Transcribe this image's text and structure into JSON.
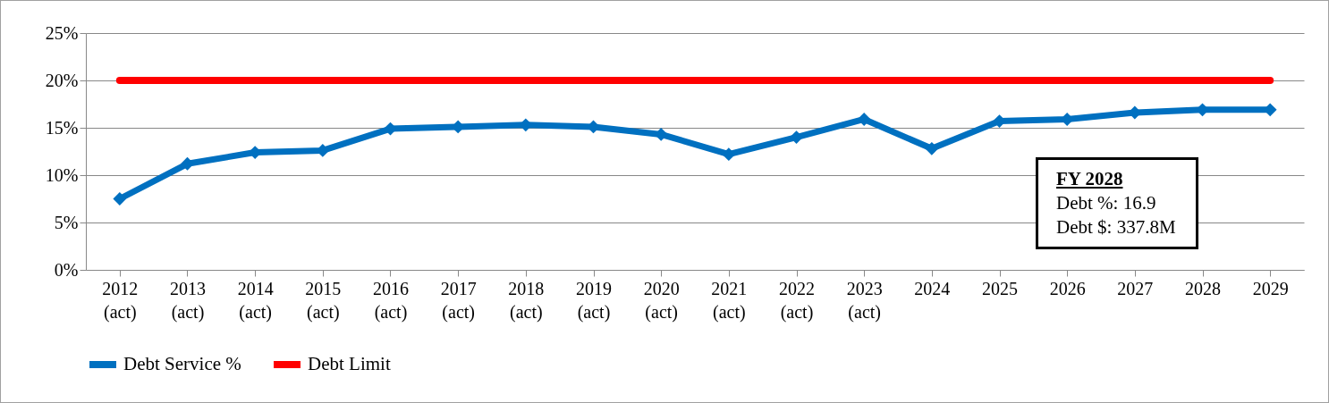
{
  "chart_data": {
    "type": "line",
    "categories": [
      "2012\n(act)",
      "2013\n(act)",
      "2014\n(act)",
      "2015\n(act)",
      "2016\n(act)",
      "2017\n(act)",
      "2018\n(act)",
      "2019\n(act)",
      "2020\n(act)",
      "2021\n(act)",
      "2022\n(act)",
      "2023\n(act)",
      "2024",
      "2025",
      "2026",
      "2027",
      "2028",
      "2029"
    ],
    "series": [
      {
        "name": "Debt Service %",
        "color": "#0070c0",
        "marker": "diamond",
        "values": [
          7.5,
          11.2,
          12.4,
          12.6,
          14.9,
          15.1,
          15.3,
          15.1,
          14.3,
          12.2,
          14.0,
          15.9,
          12.8,
          15.7,
          15.9,
          16.6,
          16.9,
          16.9
        ]
      },
      {
        "name": "Debt Limit",
        "color": "#ff0000",
        "marker": "none",
        "values": [
          20,
          20,
          20,
          20,
          20,
          20,
          20,
          20,
          20,
          20,
          20,
          20,
          20,
          20,
          20,
          20,
          20,
          20
        ]
      }
    ],
    "ylim": [
      0,
      25
    ],
    "yticks": [
      {
        "value": 0,
        "label": "0%"
      },
      {
        "value": 5,
        "label": "5%"
      },
      {
        "value": 10,
        "label": "10%"
      },
      {
        "value": 15,
        "label": "15%"
      },
      {
        "value": 20,
        "label": "20%"
      },
      {
        "value": 25,
        "label": "25%"
      }
    ],
    "grid": "y",
    "legend": "bottom",
    "annotations": [
      "FY 2028",
      "Debt %: 16.9",
      "Debt $: 337.8M"
    ]
  }
}
